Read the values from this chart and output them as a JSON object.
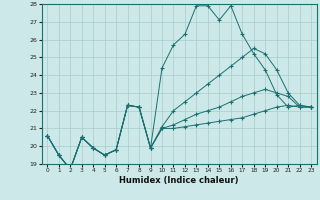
{
  "xlabel": "Humidex (Indice chaleur)",
  "xlim": [
    -0.5,
    23.5
  ],
  "ylim": [
    19,
    28
  ],
  "yticks": [
    19,
    20,
    21,
    22,
    23,
    24,
    25,
    26,
    27,
    28
  ],
  "xticks": [
    0,
    1,
    2,
    3,
    4,
    5,
    6,
    7,
    8,
    9,
    10,
    11,
    12,
    13,
    14,
    15,
    16,
    17,
    18,
    19,
    20,
    21,
    22,
    23
  ],
  "bg_color": "#cce8e8",
  "grid_color": "#aacccc",
  "line_color": "#1a7070",
  "lines": [
    {
      "x": [
        0,
        1,
        2,
        3,
        4,
        5,
        6,
        7,
        8,
        9,
        10,
        11,
        12,
        13,
        14,
        15,
        16,
        17,
        18,
        19,
        20,
        21,
        22,
        23
      ],
      "y": [
        20.6,
        19.5,
        18.7,
        20.5,
        19.9,
        19.5,
        19.8,
        22.3,
        22.2,
        19.9,
        24.4,
        25.7,
        26.3,
        27.9,
        27.9,
        27.1,
        27.9,
        26.3,
        25.2,
        24.3,
        22.9,
        22.2,
        22.3,
        22.2
      ]
    },
    {
      "x": [
        0,
        1,
        2,
        3,
        4,
        5,
        6,
        7,
        8,
        9,
        10,
        11,
        12,
        13,
        14,
        15,
        16,
        17,
        18,
        19,
        20,
        21,
        22,
        23
      ],
      "y": [
        20.6,
        19.5,
        18.7,
        20.5,
        19.9,
        19.5,
        19.8,
        22.3,
        22.2,
        19.9,
        21.1,
        22.0,
        22.5,
        23.0,
        23.5,
        24.0,
        24.5,
        25.0,
        25.5,
        25.2,
        24.3,
        23.0,
        22.3,
        22.2
      ]
    },
    {
      "x": [
        0,
        1,
        2,
        3,
        4,
        5,
        6,
        7,
        8,
        9,
        10,
        11,
        12,
        13,
        14,
        15,
        16,
        17,
        18,
        19,
        20,
        21,
        22,
        23
      ],
      "y": [
        20.6,
        19.5,
        18.7,
        20.5,
        19.9,
        19.5,
        19.8,
        22.3,
        22.2,
        19.9,
        21.0,
        21.2,
        21.5,
        21.8,
        22.0,
        22.2,
        22.5,
        22.8,
        23.0,
        23.2,
        23.0,
        22.8,
        22.2,
        22.2
      ]
    },
    {
      "x": [
        0,
        1,
        2,
        3,
        4,
        5,
        6,
        7,
        8,
        9,
        10,
        11,
        12,
        13,
        14,
        15,
        16,
        17,
        18,
        19,
        20,
        21,
        22,
        23
      ],
      "y": [
        20.6,
        19.5,
        18.7,
        20.5,
        19.9,
        19.5,
        19.8,
        22.3,
        22.2,
        19.9,
        21.0,
        21.0,
        21.1,
        21.2,
        21.3,
        21.4,
        21.5,
        21.6,
        21.8,
        22.0,
        22.2,
        22.3,
        22.2,
        22.2
      ]
    }
  ]
}
